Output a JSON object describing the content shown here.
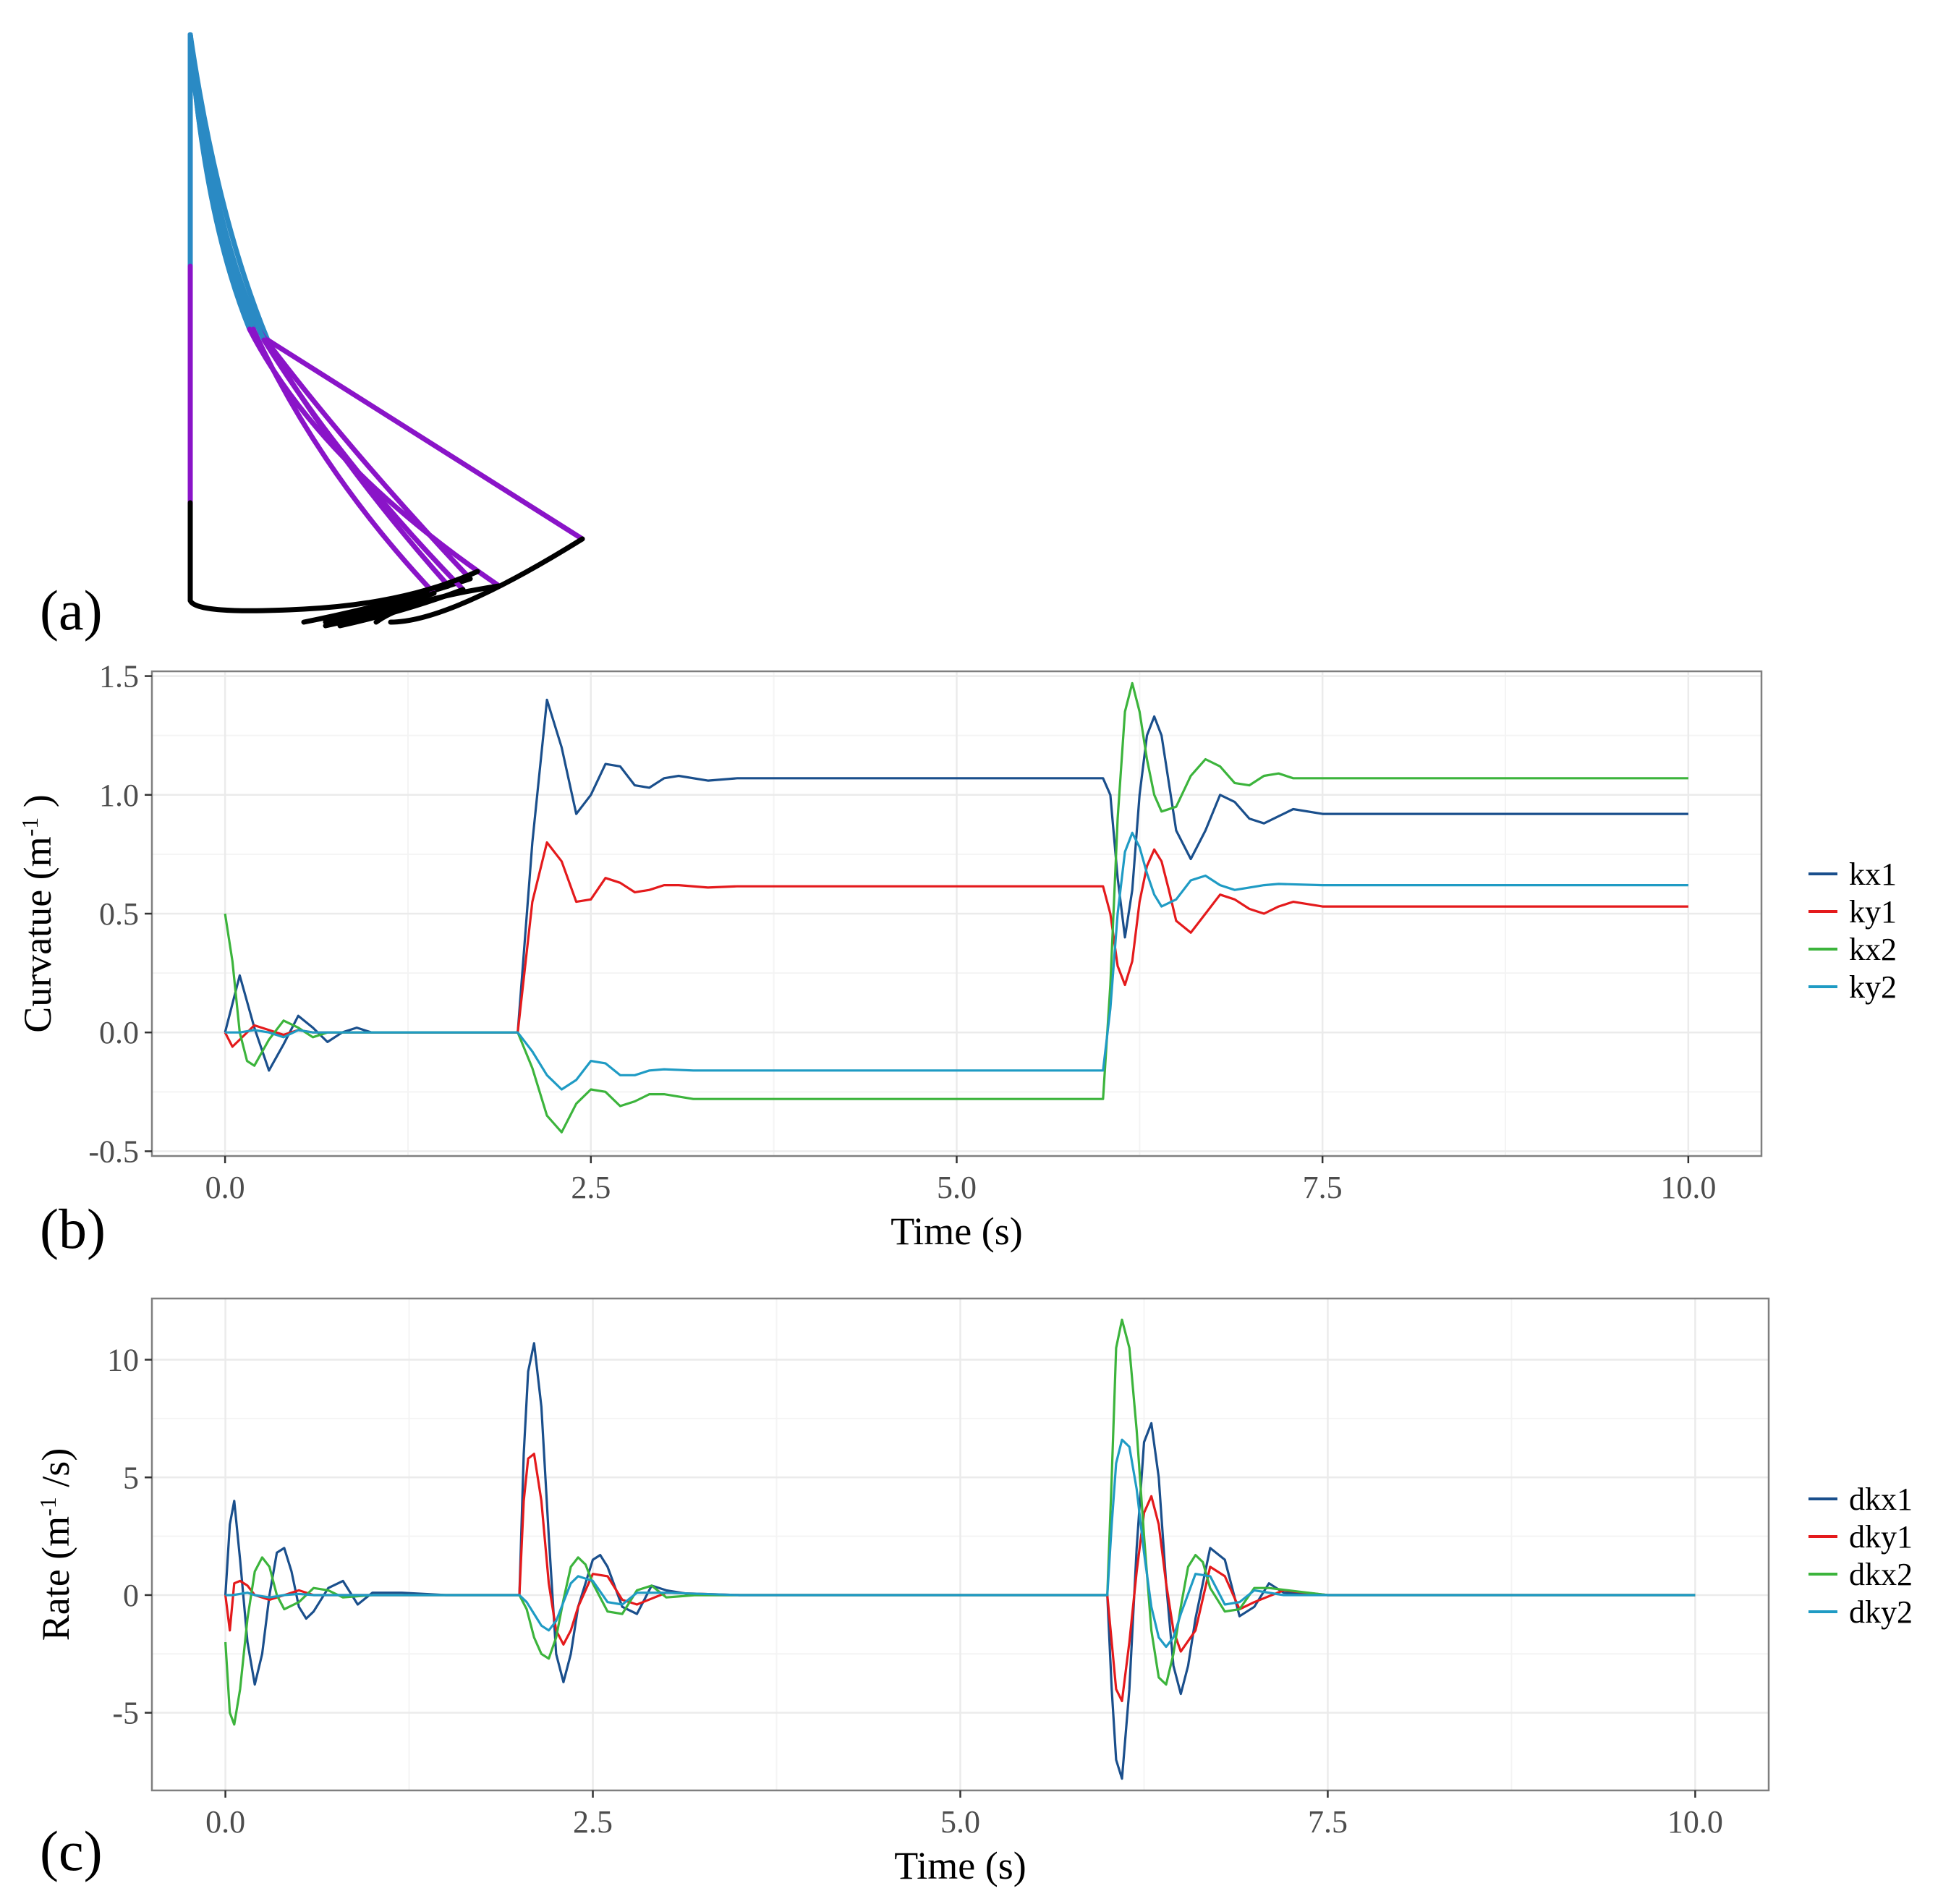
{
  "panels": {
    "a": {
      "label": "(a)"
    },
    "b": {
      "label": "(b)"
    },
    "c": {
      "label": "(c)"
    }
  },
  "colors": {
    "kx1": "#1a4f8c",
    "ky1": "#e41a1c",
    "kx2": "#3cb43c",
    "ky2": "#1f9bc4",
    "segment_top": "#2a8ac4",
    "segment_mid": "#8a14c8",
    "segment_base": "#000000",
    "grid_major": "#ebebeb",
    "grid_minor": "#f4f4f4",
    "frame": "#7f7f7f"
  },
  "chart_data": [
    {
      "id": "curvature",
      "type": "line",
      "xlabel": "Time (s)",
      "ylabel_main": "Curvatue (m",
      "ylabel_sup": "-1",
      "ylabel_tail": " )",
      "xlim": [
        -0.5,
        10.5
      ],
      "ylim": [
        -0.52,
        1.52
      ],
      "xticks": [
        0,
        2.5,
        5,
        7.5,
        10
      ],
      "xtick_labels": [
        "0.0",
        "2.5",
        "5.0",
        "7.5",
        "10.0"
      ],
      "yticks": [
        -0.5,
        0,
        0.5,
        1.0,
        1.5
      ],
      "ytick_labels": [
        "-0.5",
        "0.0",
        "0.5",
        "1.0",
        "1.5"
      ],
      "legend": [
        "kx1",
        "ky1",
        "kx2",
        "ky2"
      ],
      "series": [
        {
          "name": "kx1",
          "x": [
            0,
            0.1,
            0.2,
            0.3,
            0.4,
            0.5,
            0.6,
            0.7,
            0.8,
            0.9,
            1.0,
            1.2,
            1.5,
            2.0,
            2.1,
            2.2,
            2.3,
            2.4,
            2.5,
            2.6,
            2.7,
            2.8,
            2.9,
            3.0,
            3.1,
            3.3,
            3.5,
            4.0,
            5.0,
            6.0,
            6.05,
            6.1,
            6.15,
            6.2,
            6.25,
            6.3,
            6.35,
            6.4,
            6.45,
            6.5,
            6.6,
            6.7,
            6.8,
            6.9,
            7.0,
            7.1,
            7.2,
            7.3,
            7.5,
            8.0,
            10.0
          ],
          "values": [
            0,
            0.24,
            0.02,
            -0.16,
            -0.05,
            0.07,
            0.02,
            -0.04,
            0.0,
            0.02,
            0.0,
            0.0,
            0.0,
            0.0,
            0.8,
            1.4,
            1.2,
            0.92,
            1.0,
            1.13,
            1.12,
            1.04,
            1.03,
            1.07,
            1.08,
            1.06,
            1.07,
            1.07,
            1.07,
            1.07,
            1.0,
            0.65,
            0.4,
            0.6,
            1.0,
            1.25,
            1.33,
            1.25,
            1.05,
            0.85,
            0.73,
            0.85,
            1.0,
            0.97,
            0.9,
            0.88,
            0.91,
            0.94,
            0.92,
            0.92,
            0.92
          ]
        },
        {
          "name": "ky1",
          "x": [
            0,
            0.05,
            0.1,
            0.2,
            0.3,
            0.4,
            0.5,
            0.6,
            0.7,
            0.8,
            1.0,
            1.5,
            2.0,
            2.1,
            2.2,
            2.3,
            2.4,
            2.5,
            2.6,
            2.7,
            2.8,
            2.9,
            3.0,
            3.1,
            3.3,
            3.5,
            4.0,
            5.0,
            6.0,
            6.05,
            6.1,
            6.15,
            6.2,
            6.25,
            6.3,
            6.35,
            6.4,
            6.45,
            6.5,
            6.6,
            6.7,
            6.8,
            6.9,
            7.0,
            7.1,
            7.2,
            7.3,
            7.5,
            8.0,
            10.0
          ],
          "values": [
            0,
            -0.06,
            -0.03,
            0.03,
            0.01,
            -0.01,
            0.01,
            0.0,
            0.0,
            0.0,
            0.0,
            0.0,
            0.0,
            0.55,
            0.8,
            0.72,
            0.55,
            0.56,
            0.65,
            0.63,
            0.59,
            0.6,
            0.62,
            0.62,
            0.61,
            0.615,
            0.615,
            0.615,
            0.615,
            0.5,
            0.28,
            0.2,
            0.3,
            0.55,
            0.7,
            0.77,
            0.72,
            0.6,
            0.47,
            0.42,
            0.5,
            0.58,
            0.56,
            0.52,
            0.5,
            0.53,
            0.55,
            0.53,
            0.53,
            0.53
          ]
        },
        {
          "name": "kx2",
          "x": [
            0,
            0.05,
            0.1,
            0.15,
            0.2,
            0.3,
            0.4,
            0.5,
            0.6,
            0.7,
            0.8,
            1.0,
            1.5,
            2.0,
            2.1,
            2.2,
            2.3,
            2.4,
            2.5,
            2.6,
            2.7,
            2.8,
            2.9,
            3.0,
            3.2,
            3.5,
            4.0,
            5.0,
            6.0,
            6.05,
            6.1,
            6.15,
            6.2,
            6.25,
            6.3,
            6.35,
            6.4,
            6.5,
            6.6,
            6.7,
            6.8,
            6.9,
            7.0,
            7.1,
            7.2,
            7.3,
            7.5,
            8.0,
            10.0
          ],
          "values": [
            0.5,
            0.3,
            0.0,
            -0.12,
            -0.14,
            -0.03,
            0.05,
            0.02,
            -0.02,
            0.0,
            0.0,
            0.0,
            0.0,
            0.0,
            -0.15,
            -0.35,
            -0.42,
            -0.3,
            -0.24,
            -0.25,
            -0.31,
            -0.29,
            -0.26,
            -0.26,
            -0.28,
            -0.28,
            -0.28,
            -0.28,
            -0.28,
            0.2,
            0.9,
            1.35,
            1.47,
            1.35,
            1.15,
            1.0,
            0.93,
            0.95,
            1.08,
            1.15,
            1.12,
            1.05,
            1.04,
            1.08,
            1.09,
            1.07,
            1.07,
            1.07,
            1.07
          ]
        },
        {
          "name": "ky2",
          "x": [
            0,
            0.1,
            0.2,
            0.3,
            0.4,
            0.5,
            0.6,
            0.8,
            1.0,
            1.5,
            2.0,
            2.1,
            2.2,
            2.3,
            2.4,
            2.5,
            2.6,
            2.7,
            2.8,
            2.9,
            3.0,
            3.2,
            3.5,
            4.0,
            5.0,
            6.0,
            6.05,
            6.1,
            6.15,
            6.2,
            6.25,
            6.3,
            6.35,
            6.4,
            6.5,
            6.6,
            6.7,
            6.8,
            6.9,
            7.0,
            7.1,
            7.2,
            7.5,
            8.0,
            10.0
          ],
          "values": [
            0,
            0.0,
            0.01,
            0.0,
            -0.02,
            0.01,
            0.0,
            0.0,
            0.0,
            0.0,
            0.0,
            -0.08,
            -0.18,
            -0.24,
            -0.2,
            -0.12,
            -0.13,
            -0.18,
            -0.18,
            -0.16,
            -0.155,
            -0.16,
            -0.16,
            -0.16,
            -0.16,
            -0.16,
            0.1,
            0.5,
            0.76,
            0.84,
            0.78,
            0.67,
            0.58,
            0.53,
            0.56,
            0.64,
            0.66,
            0.62,
            0.6,
            0.61,
            0.62,
            0.625,
            0.62,
            0.62,
            0.62
          ]
        }
      ]
    },
    {
      "id": "rate",
      "type": "line",
      "xlabel": "Time (s)",
      "ylabel_main": "Rate (m",
      "ylabel_sup": "-1",
      "ylabel_tail": " /s)",
      "xlim": [
        -0.5,
        10.5
      ],
      "ylim": [
        -8.3,
        12.6
      ],
      "xticks": [
        0,
        2.5,
        5,
        7.5,
        10
      ],
      "xtick_labels": [
        "0.0",
        "2.5",
        "5.0",
        "7.5",
        "10.0"
      ],
      "yticks": [
        -5,
        0,
        5,
        10
      ],
      "ytick_labels": [
        "-5",
        "0",
        "5",
        "10"
      ],
      "legend": [
        "dkx1",
        "dky1",
        "dkx2",
        "dky2"
      ],
      "series": [
        {
          "name": "dkx1",
          "x": [
            0,
            0.03,
            0.06,
            0.1,
            0.15,
            0.2,
            0.25,
            0.3,
            0.35,
            0.4,
            0.45,
            0.5,
            0.55,
            0.6,
            0.7,
            0.8,
            0.9,
            1.0,
            1.2,
            1.5,
            2.0,
            2.03,
            2.06,
            2.1,
            2.15,
            2.2,
            2.25,
            2.3,
            2.35,
            2.4,
            2.5,
            2.55,
            2.6,
            2.7,
            2.8,
            2.9,
            3.0,
            3.2,
            3.5,
            4.0,
            5.0,
            6.0,
            6.03,
            6.06,
            6.1,
            6.15,
            6.2,
            6.25,
            6.3,
            6.35,
            6.4,
            6.45,
            6.5,
            6.55,
            6.6,
            6.7,
            6.8,
            6.9,
            7.0,
            7.1,
            7.2,
            7.5,
            8.0,
            10.0
          ],
          "values": [
            0,
            3.0,
            4.0,
            1.5,
            -2.0,
            -3.8,
            -2.5,
            0.0,
            1.8,
            2.0,
            1.0,
            -0.5,
            -1.0,
            -0.7,
            0.3,
            0.6,
            -0.4,
            0.1,
            0.1,
            0.0,
            0.0,
            6.0,
            9.5,
            10.7,
            8.0,
            2.5,
            -2.5,
            -3.7,
            -2.5,
            -0.5,
            1.5,
            1.7,
            1.2,
            -0.5,
            -0.8,
            0.4,
            0.2,
            0.0,
            0.0,
            0.0,
            0.0,
            0.0,
            -4.0,
            -7.0,
            -7.8,
            -4.0,
            2.0,
            6.5,
            7.3,
            5.0,
            0.5,
            -3.0,
            -4.2,
            -3.0,
            -1.0,
            2.0,
            1.5,
            -0.9,
            -0.5,
            0.5,
            0.1,
            0.0,
            0.0,
            0.0
          ]
        },
        {
          "name": "dky1",
          "x": [
            0,
            0.03,
            0.06,
            0.1,
            0.15,
            0.2,
            0.3,
            0.4,
            0.5,
            0.6,
            0.8,
            1.0,
            1.5,
            2.0,
            2.03,
            2.06,
            2.1,
            2.15,
            2.2,
            2.25,
            2.3,
            2.35,
            2.4,
            2.5,
            2.6,
            2.7,
            2.8,
            3.0,
            3.5,
            4.0,
            6.0,
            6.03,
            6.06,
            6.1,
            6.15,
            6.2,
            6.25,
            6.3,
            6.35,
            6.4,
            6.45,
            6.5,
            6.6,
            6.7,
            6.8,
            6.9,
            7.0,
            7.2,
            7.5,
            8.0,
            10.0
          ],
          "values": [
            0,
            -1.5,
            0.5,
            0.6,
            0.4,
            0.0,
            -0.2,
            0.0,
            0.2,
            0.0,
            0.0,
            0.0,
            0.0,
            0.0,
            4.0,
            5.8,
            6.0,
            4.0,
            0.5,
            -1.5,
            -2.1,
            -1.5,
            -0.5,
            0.9,
            0.8,
            -0.2,
            -0.4,
            0.1,
            0.0,
            0.0,
            0.0,
            -2.0,
            -4.0,
            -4.5,
            -2.0,
            1.0,
            3.5,
            4.2,
            3.0,
            0.5,
            -1.5,
            -2.4,
            -1.5,
            1.2,
            0.8,
            -0.6,
            -0.3,
            0.2,
            0.0,
            0.0,
            0.0
          ]
        },
        {
          "name": "dkx2",
          "x": [
            0,
            0.03,
            0.06,
            0.1,
            0.15,
            0.2,
            0.25,
            0.3,
            0.35,
            0.4,
            0.5,
            0.6,
            0.7,
            0.8,
            1.0,
            1.5,
            2.0,
            2.05,
            2.1,
            2.15,
            2.2,
            2.25,
            2.3,
            2.35,
            2.4,
            2.45,
            2.5,
            2.6,
            2.7,
            2.8,
            2.9,
            3.0,
            3.2,
            3.5,
            4.0,
            6.0,
            6.03,
            6.06,
            6.1,
            6.15,
            6.2,
            6.25,
            6.3,
            6.35,
            6.4,
            6.45,
            6.5,
            6.55,
            6.6,
            6.65,
            6.7,
            6.8,
            6.9,
            7.0,
            7.1,
            7.5,
            8.0,
            10.0
          ],
          "values": [
            -2.0,
            -5.0,
            -5.5,
            -4.0,
            -1.0,
            1.0,
            1.6,
            1.2,
            0.0,
            -0.6,
            -0.3,
            0.3,
            0.2,
            -0.1,
            0.0,
            0.0,
            0.0,
            -0.6,
            -1.8,
            -2.5,
            -2.7,
            -1.8,
            -0.2,
            1.2,
            1.6,
            1.3,
            0.5,
            -0.7,
            -0.8,
            0.2,
            0.4,
            -0.1,
            0.0,
            0.0,
            0.0,
            0.0,
            5.0,
            10.5,
            11.7,
            10.5,
            7.0,
            2.5,
            -1.5,
            -3.5,
            -3.8,
            -2.5,
            -0.5,
            1.2,
            1.7,
            1.4,
            0.3,
            -0.7,
            -0.6,
            0.3,
            0.3,
            0.0,
            0.0,
            0.0
          ]
        },
        {
          "name": "dky2",
          "x": [
            0,
            0.05,
            0.1,
            0.15,
            0.2,
            0.3,
            0.4,
            0.5,
            0.6,
            0.8,
            1.0,
            1.5,
            2.0,
            2.05,
            2.1,
            2.15,
            2.2,
            2.25,
            2.3,
            2.35,
            2.4,
            2.5,
            2.6,
            2.7,
            2.8,
            3.0,
            3.5,
            4.0,
            6.0,
            6.03,
            6.06,
            6.1,
            6.15,
            6.2,
            6.25,
            6.3,
            6.35,
            6.4,
            6.45,
            6.5,
            6.6,
            6.7,
            6.8,
            6.9,
            7.0,
            7.2,
            7.5,
            8.0,
            10.0
          ],
          "values": [
            0,
            0.0,
            0.05,
            0.1,
            0.0,
            -0.1,
            0.0,
            0.05,
            0.0,
            0.0,
            0.0,
            0.0,
            0.0,
            -0.3,
            -0.8,
            -1.3,
            -1.5,
            -1.1,
            -0.3,
            0.5,
            0.8,
            0.6,
            -0.3,
            -0.4,
            0.1,
            0.1,
            0.0,
            0.0,
            0.0,
            3.0,
            5.6,
            6.6,
            6.3,
            4.5,
            1.8,
            -0.5,
            -1.8,
            -2.2,
            -1.8,
            -0.8,
            0.9,
            0.8,
            -0.4,
            -0.3,
            0.2,
            0.0,
            0.0,
            0.0,
            0.0
          ]
        }
      ]
    }
  ]
}
